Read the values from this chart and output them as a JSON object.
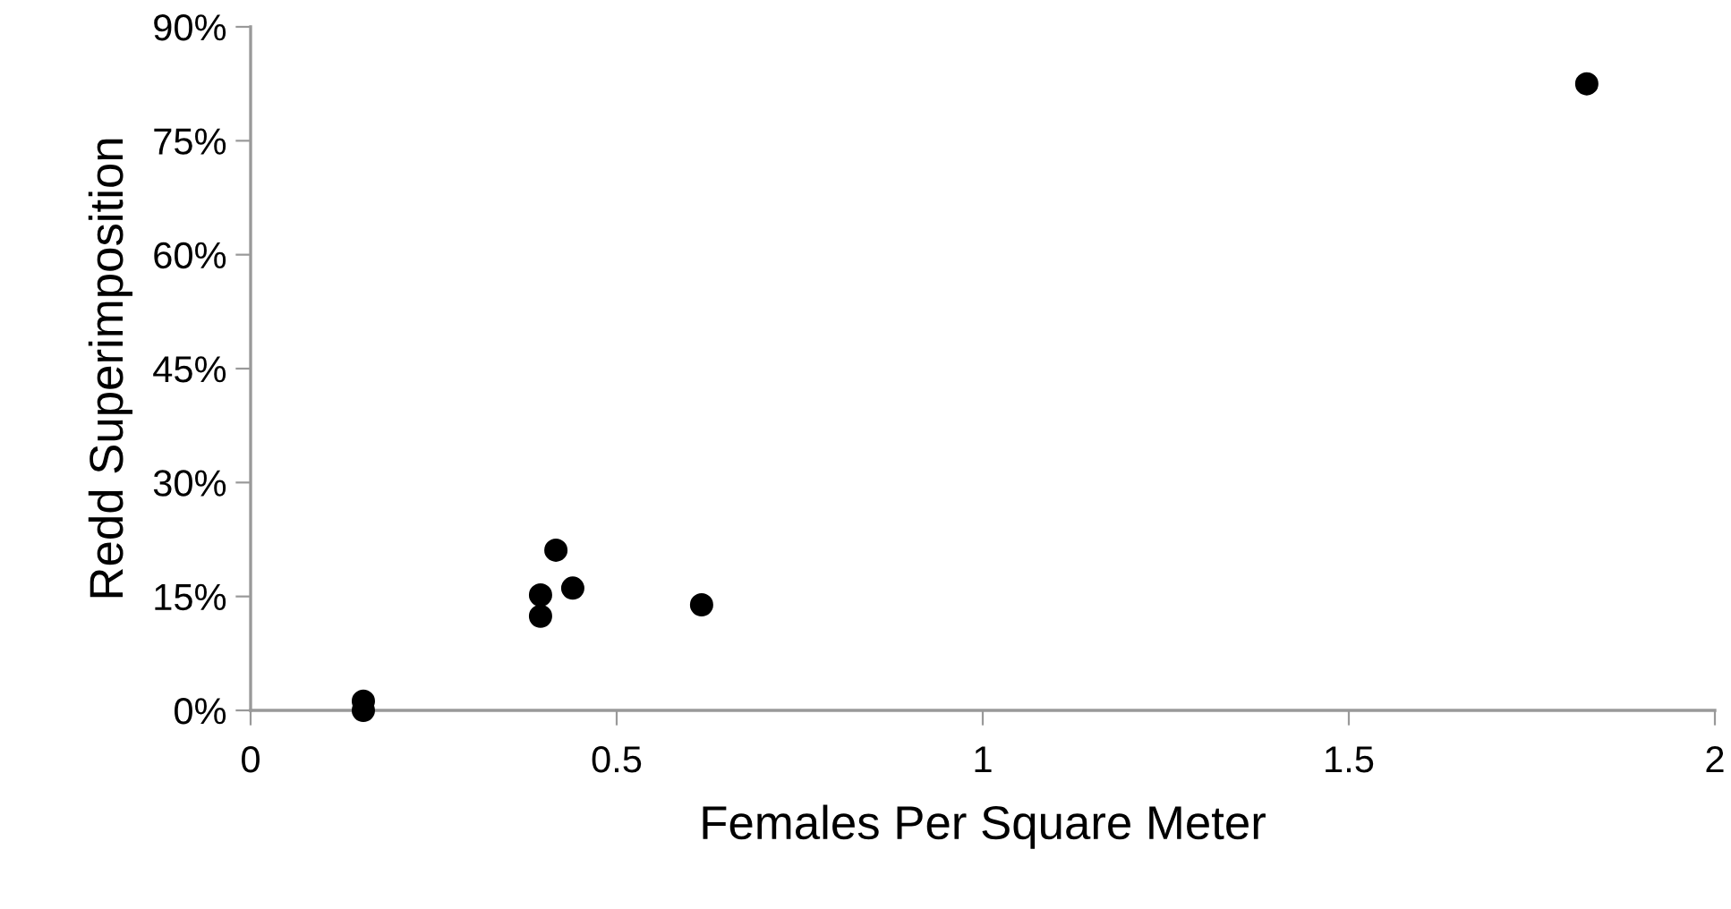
{
  "chart_data": {
    "type": "scatter",
    "xlabel": "Females Per Square Meter",
    "ylabel": "Redd Superimposition",
    "x": [
      0.154,
      0.154,
      0.396,
      0.396,
      0.417,
      0.44,
      0.616,
      1.825
    ],
    "series": [
      {
        "color": "#000000",
        "values": [
          1.2,
          0,
          15.2,
          12.4,
          21.1,
          16.1,
          13.9,
          82.5
        ]
      }
    ],
    "xlim": [
      0,
      2
    ],
    "xticks": [
      0,
      0.5,
      1,
      1.5,
      2
    ],
    "ylim": [
      0,
      90
    ],
    "yticks": [
      {
        "value": 0,
        "label": "0%"
      },
      {
        "value": 15,
        "label": "15%"
      },
      {
        "value": 30,
        "label": "30%"
      },
      {
        "value": 45,
        "label": "45%"
      },
      {
        "value": 60,
        "label": "60%"
      },
      {
        "value": 75,
        "label": "75%"
      },
      {
        "value": 90,
        "label": "90%"
      }
    ],
    "marker": "circle"
  }
}
